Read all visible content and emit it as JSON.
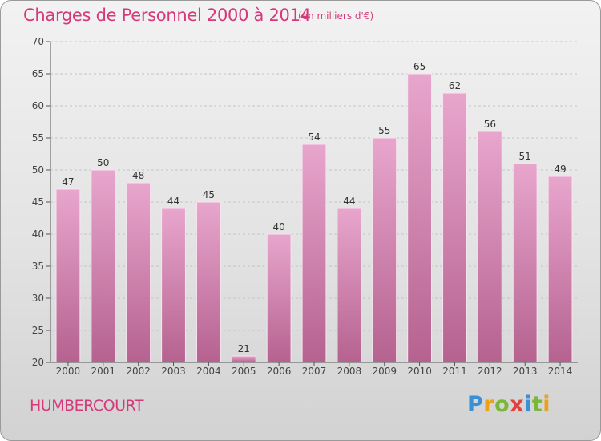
{
  "chart_data": {
    "type": "bar",
    "title": "Charges de Personnel 2000 à 2014",
    "subtitle": "(en milliers d'€)",
    "categories": [
      "2000",
      "2001",
      "2002",
      "2003",
      "2004",
      "2005",
      "2006",
      "2007",
      "2008",
      "2009",
      "2010",
      "2011",
      "2012",
      "2013",
      "2014"
    ],
    "values": [
      47,
      50,
      48,
      44,
      45,
      21,
      40,
      54,
      44,
      55,
      65,
      62,
      56,
      51,
      49
    ],
    "ylim": [
      20,
      70
    ],
    "yticks": [
      20,
      25,
      30,
      35,
      40,
      45,
      50,
      55,
      60,
      65,
      70
    ],
    "grid": true,
    "bar_color": "#d98cb9"
  },
  "footer": {
    "commune": "HUMBERCOURT",
    "logo_letters": [
      {
        "char": "P",
        "color": "#3a8fd6"
      },
      {
        "char": "r",
        "color": "#e8a21c"
      },
      {
        "char": "o",
        "color": "#7ab83b"
      },
      {
        "char": "x",
        "color": "#e2413c"
      },
      {
        "char": "i",
        "color": "#3a8fd6"
      },
      {
        "char": "t",
        "color": "#7ab83b"
      },
      {
        "char": "i",
        "color": "#e8a21c"
      }
    ]
  }
}
